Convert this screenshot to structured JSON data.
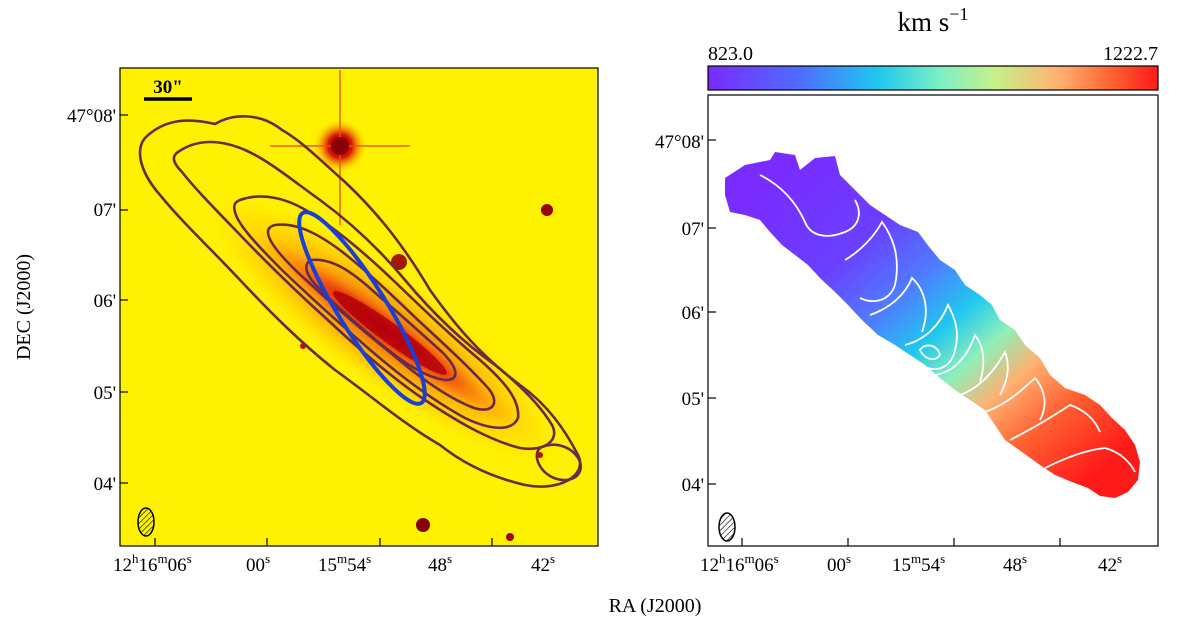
{
  "figure": {
    "ra_axis_label": "RA (J2000)",
    "dec_axis_label": "DEC (J2000)"
  },
  "chart_data": [
    {
      "type": "heatmap",
      "panel": "left",
      "title": "",
      "xlabel": "RA (J2000)",
      "ylabel": "DEC (J2000)",
      "x_ticks": [
        {
          "value": "12h16m06s",
          "hh": "12",
          "h": "h",
          "mm": "16",
          "m": "m",
          "ss": "06",
          "s": "s"
        },
        {
          "value": "00s",
          "ss": "00",
          "s": "s"
        },
        {
          "value": "15m54s",
          "mm": "15",
          "m": "m",
          "ss": "54",
          "s": "s"
        },
        {
          "value": "48s",
          "ss": "48",
          "s": "s"
        },
        {
          "value": "42s",
          "ss": "42",
          "s": "s"
        }
      ],
      "y_ticks": [
        "47°08'",
        "07'",
        "06'",
        "05'",
        "04'"
      ],
      "scale_bar_label": "30\"",
      "background_colormap": [
        "#fff200",
        "#e3000f"
      ],
      "contour_color": "#6b2a4a",
      "ellipse_color": "#1a3fd6",
      "beam": "hatched-ellipse"
    },
    {
      "type": "heatmap",
      "panel": "right",
      "title": "",
      "xlabel": "RA (J2000)",
      "ylabel": "",
      "x_ticks": [
        {
          "value": "12h16m06s",
          "hh": "12",
          "h": "h",
          "mm": "16",
          "m": "m",
          "ss": "06",
          "s": "s"
        },
        {
          "value": "00s",
          "ss": "00",
          "s": "s"
        },
        {
          "value": "15m54s",
          "mm": "15",
          "m": "m",
          "ss": "54",
          "s": "s"
        },
        {
          "value": "48s",
          "ss": "48",
          "s": "s"
        },
        {
          "value": "42s",
          "ss": "42",
          "s": "s"
        }
      ],
      "y_ticks": [
        "47°08'",
        "07'",
        "06'",
        "05'",
        "04'"
      ],
      "colorbar": {
        "unit_base": "km s",
        "unit_exp": "−1",
        "min": 823.0,
        "max": 1222.7,
        "min_label": "823.0",
        "max_label": "1222.7",
        "colormap": [
          "#7a2bff",
          "#4f6bff",
          "#1fc8ee",
          "#7ff0c2",
          "#c8f08a",
          "#ffb070",
          "#ff6030",
          "#ff1a1a"
        ]
      },
      "contour_color": "#ffffff",
      "beam": "hatched-ellipse"
    }
  ]
}
